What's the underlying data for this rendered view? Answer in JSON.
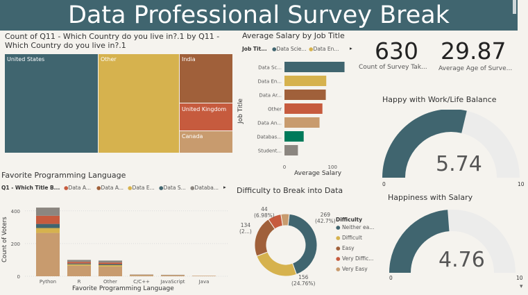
{
  "header": {
    "title": "Data Professional Survey Break"
  },
  "treemap": {
    "title_line1": "Count of Q11 - Which Country do you live in?.1 by Q11 -",
    "title_line2": "Which Country do you live in?.1",
    "items": [
      {
        "label": "United States",
        "color": "#40656f"
      },
      {
        "label": "Other",
        "color": "#d6b24e"
      },
      {
        "label": "India",
        "color": "#a0603a"
      },
      {
        "label": "United Kingdom",
        "color": "#c65b3e"
      },
      {
        "label": "Canada",
        "color": "#c89b6e"
      }
    ]
  },
  "salary": {
    "title": "Average Salary by Job Title",
    "legend_title": "Job Tit...",
    "legend": [
      {
        "label": "Data Scie...",
        "color": "#40656f"
      },
      {
        "label": "Data En...",
        "color": "#d6b24e"
      }
    ],
    "y_axis_title": "Job Title",
    "x_axis_title": "Average Salary",
    "ticks": [
      "0",
      "100"
    ]
  },
  "kpis": {
    "count_value": "630",
    "count_label": "Count of Survey Tak...",
    "age_value": "29.87",
    "age_label": "Average Age of Surve..."
  },
  "gauge_worklife": {
    "title": "Happy with Work/Life Balance",
    "value_text": "5.74",
    "min": "0",
    "max": "10"
  },
  "gauge_salary": {
    "title": "Happiness with Salary",
    "value_text": "4.76",
    "min": "0",
    "max": "10"
  },
  "lang": {
    "title": "Favorite Programming Language",
    "legend_title": "Q1 - Which Title B...",
    "legend": [
      {
        "label": "Data A...",
        "color": "#c65b3e"
      },
      {
        "label": "Data A...",
        "color": "#a0603a"
      },
      {
        "label": "Data E...",
        "color": "#d6b24e"
      },
      {
        "label": "Data S...",
        "color": "#40656f"
      },
      {
        "label": "Databa...",
        "color": "#8b8680"
      }
    ],
    "y_axis_title": "Count of Voters",
    "x_axis_title": "Favorite Programming Language"
  },
  "difficulty": {
    "title": "Difficulty to Break into Data",
    "legend_title": "Difficulty",
    "legend": [
      {
        "label": "Neither ea...",
        "color": "#40656f"
      },
      {
        "label": "Difficult",
        "color": "#d6b24e"
      },
      {
        "label": "Easy",
        "color": "#a0603a"
      },
      {
        "label": "Very Diffic...",
        "color": "#c65b3e"
      },
      {
        "label": "Very Easy",
        "color": "#c89b6e"
      }
    ],
    "callouts": [
      {
        "line1": "269",
        "line2": "(42.7%)"
      },
      {
        "line1": "156",
        "line2": "(24.76%)"
      },
      {
        "line1": "134",
        "line2": "(2...)"
      },
      {
        "line1": "44",
        "line2": "(6.98%)"
      }
    ]
  },
  "chart_data": [
    {
      "type": "treemap",
      "title": "Count of Q11 - Which Country do you live in?.1 by Q11 - Which Country do you live in?.1",
      "categories": [
        "United States",
        "Other",
        "India",
        "United Kingdom",
        "Canada"
      ],
      "values": [
        262,
        222,
        74,
        39,
        33
      ]
    },
    {
      "type": "bar",
      "orientation": "horizontal",
      "title": "Average Salary by Job Title",
      "categories": [
        "Data Sc...",
        "Data En...",
        "Data Ar...",
        "Other",
        "Data An...",
        "Databas...",
        "Student..."
      ],
      "values": [
        125,
        87,
        86,
        79,
        73,
        40,
        28
      ],
      "colors": [
        "#40656f",
        "#d6b24e",
        "#a0603a",
        "#c65b3e",
        "#c89b6e",
        "#007a5a",
        "#8b8680"
      ],
      "xlabel": "Average Salary",
      "ylabel": "Job Title",
      "xlim": [
        0,
        130
      ],
      "xticks": [
        0,
        100
      ]
    },
    {
      "type": "bar",
      "stacked": true,
      "title": "Favorite Programming Language",
      "categories": [
        "Python",
        "R",
        "Other",
        "C/C++",
        "JavaScript",
        "Java"
      ],
      "yticks": [
        0,
        200,
        400
      ],
      "ylim": [
        0,
        450
      ],
      "xlabel": "Favorite Programming Language",
      "ylabel": "Count of Voters",
      "series": [
        {
          "name": "Data A...",
          "color": "#c89b6e",
          "values": [
            265,
            65,
            60,
            7,
            5,
            3
          ]
        },
        {
          "name": "Data E...",
          "color": "#d6b24e",
          "values": [
            30,
            8,
            8,
            1,
            1,
            0
          ]
        },
        {
          "name": "Data S...",
          "color": "#40656f",
          "values": [
            25,
            5,
            6,
            1,
            1,
            0
          ]
        },
        {
          "name": "Data A...",
          "color": "#c65b3e",
          "values": [
            50,
            10,
            10,
            1,
            1,
            0
          ]
        },
        {
          "name": "Databa...",
          "color": "#8b8680",
          "values": [
            50,
            12,
            12,
            1,
            1,
            0
          ]
        }
      ]
    },
    {
      "type": "pie",
      "donut": true,
      "title": "Difficulty to Break into Data",
      "categories": [
        "Neither ea...",
        "Difficult",
        "Easy",
        "Very Diffic...",
        "Very Easy"
      ],
      "values": [
        269,
        156,
        134,
        44,
        27
      ],
      "percent": [
        42.7,
        24.76,
        21.27,
        6.98,
        4.29
      ],
      "colors": [
        "#40656f",
        "#d6b24e",
        "#a0603a",
        "#c65b3e",
        "#c89b6e"
      ]
    },
    {
      "type": "gauge",
      "title": "Happy with Work/Life Balance",
      "value": 5.74,
      "min": 0,
      "max": 10
    },
    {
      "type": "gauge",
      "title": "Happiness with Salary",
      "value": 4.76,
      "min": 0,
      "max": 10
    }
  ]
}
